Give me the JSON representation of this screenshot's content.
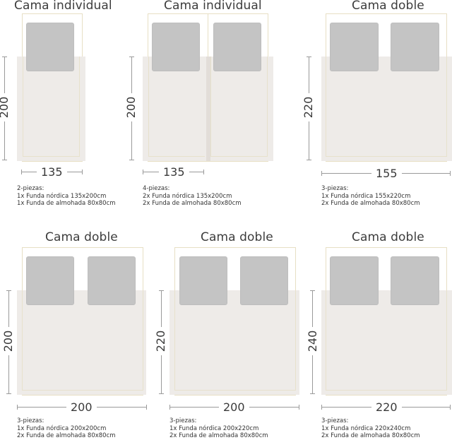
{
  "panels": [
    {
      "title": "Cama individual",
      "height_label": "200",
      "width_label": "135",
      "description": [
        "2-piezas:",
        "1x Funda nórdica 135x200cm",
        "1x Funda de almohada 80x80cm"
      ]
    },
    {
      "title": "Cama individual",
      "height_label": "200",
      "width_label": "135",
      "description": [
        "4-piezas:",
        "2x Funda nórdica 135x200cm",
        "2x Funda de almohada 80x80cm"
      ]
    },
    {
      "title": "Cama doble",
      "height_label": "220",
      "width_label": "155",
      "description": [
        "3-piezas:",
        "1x Funda nórdica 155x220cm",
        "2x Funda de almohada 80x80cm"
      ]
    },
    {
      "title": "Cama doble",
      "height_label": "200",
      "width_label": "200",
      "description": [
        "3-piezas:",
        "1x Funda nórdica 200x200cm",
        "2x Funda de almohada 80x80cm"
      ]
    },
    {
      "title": "Cama doble",
      "height_label": "220",
      "width_label": "200",
      "description": [
        "3-piezas:",
        "1x Funda nórdica 200x220cm",
        "2x Funda de almohada 80x80cm"
      ]
    },
    {
      "title": "Cama doble",
      "height_label": "240",
      "width_label": "220",
      "description": [
        "3-piezas:",
        "1x Funda nórdica 220x240cm",
        "2x Funda de almohada 80x80cm"
      ]
    }
  ],
  "colors": {
    "duvet": "#eeebe8",
    "pillow": "#c4c4c4",
    "frame": "#e7dfc4",
    "dimension_line": "#9a9a9a"
  }
}
